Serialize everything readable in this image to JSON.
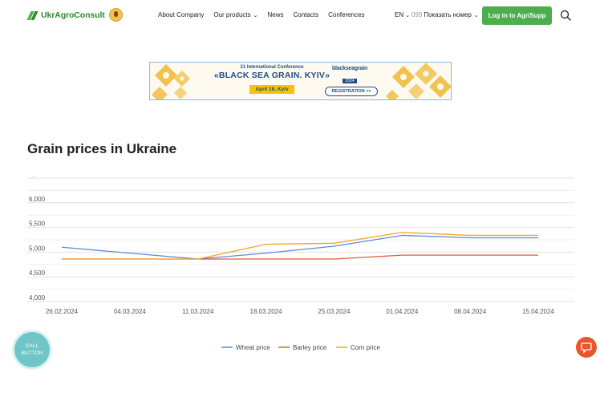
{
  "header": {
    "logo_text": "UkrAgroConsult",
    "nav": [
      {
        "label": "About Company",
        "has_dropdown": false
      },
      {
        "label": "Our products",
        "has_dropdown": true
      },
      {
        "label": "News",
        "has_dropdown": false
      },
      {
        "label": "Contacts",
        "has_dropdown": false
      },
      {
        "label": "Conferences",
        "has_dropdown": false
      }
    ],
    "language": "EN",
    "phone_prefix": "099",
    "phone_label": "Показать номер",
    "login_label": "Log in to AgriSupp"
  },
  "banner": {
    "small_text": "21 International Conference",
    "title": "«BLACK SEA GRAIN. KYIV»",
    "date": "April 18, Kyiv",
    "logo_line1": "blackseagrain",
    "logo_line2": "2024",
    "register_label": "REGISTRATION >>"
  },
  "section_title": "Grain prices in Ukraine",
  "chart_data": {
    "type": "line",
    "categories": [
      "26.02.2024",
      "04.03.2024",
      "11.03.2024",
      "18.03.2024",
      "25.03.2024",
      "01.04.2024",
      "08.04.2024",
      "15.04.2024"
    ],
    "series": [
      {
        "name": "Wheat price",
        "color": "#5b8bd6",
        "values": [
          5100,
          4980,
          4860,
          4980,
          5120,
          5340,
          5290,
          5290
        ]
      },
      {
        "name": "Barley price",
        "color": "#e05a3a",
        "values": [
          4860,
          4860,
          4860,
          4860,
          4860,
          4940,
          4940,
          4940
        ]
      },
      {
        "name": "Corn price",
        "color": "#f5a623",
        "values": [
          4860,
          4860,
          4860,
          5160,
          5180,
          5400,
          5340,
          5340
        ]
      }
    ],
    "y_ticks": [
      "6,500",
      "6,000",
      "5,500",
      "5,000",
      "4,500",
      "4,000"
    ],
    "ylim": [
      4000,
      6500
    ],
    "grid": true,
    "legend_position": "bottom-center"
  },
  "floating": {
    "call_line1": "CALL",
    "call_line2": "BUTTON"
  },
  "colors": {
    "brand_green": "#4cae4c",
    "banner_blue": "#1f4f87",
    "chat_orange": "#e8572a",
    "call_teal": "#6ec6c6"
  }
}
